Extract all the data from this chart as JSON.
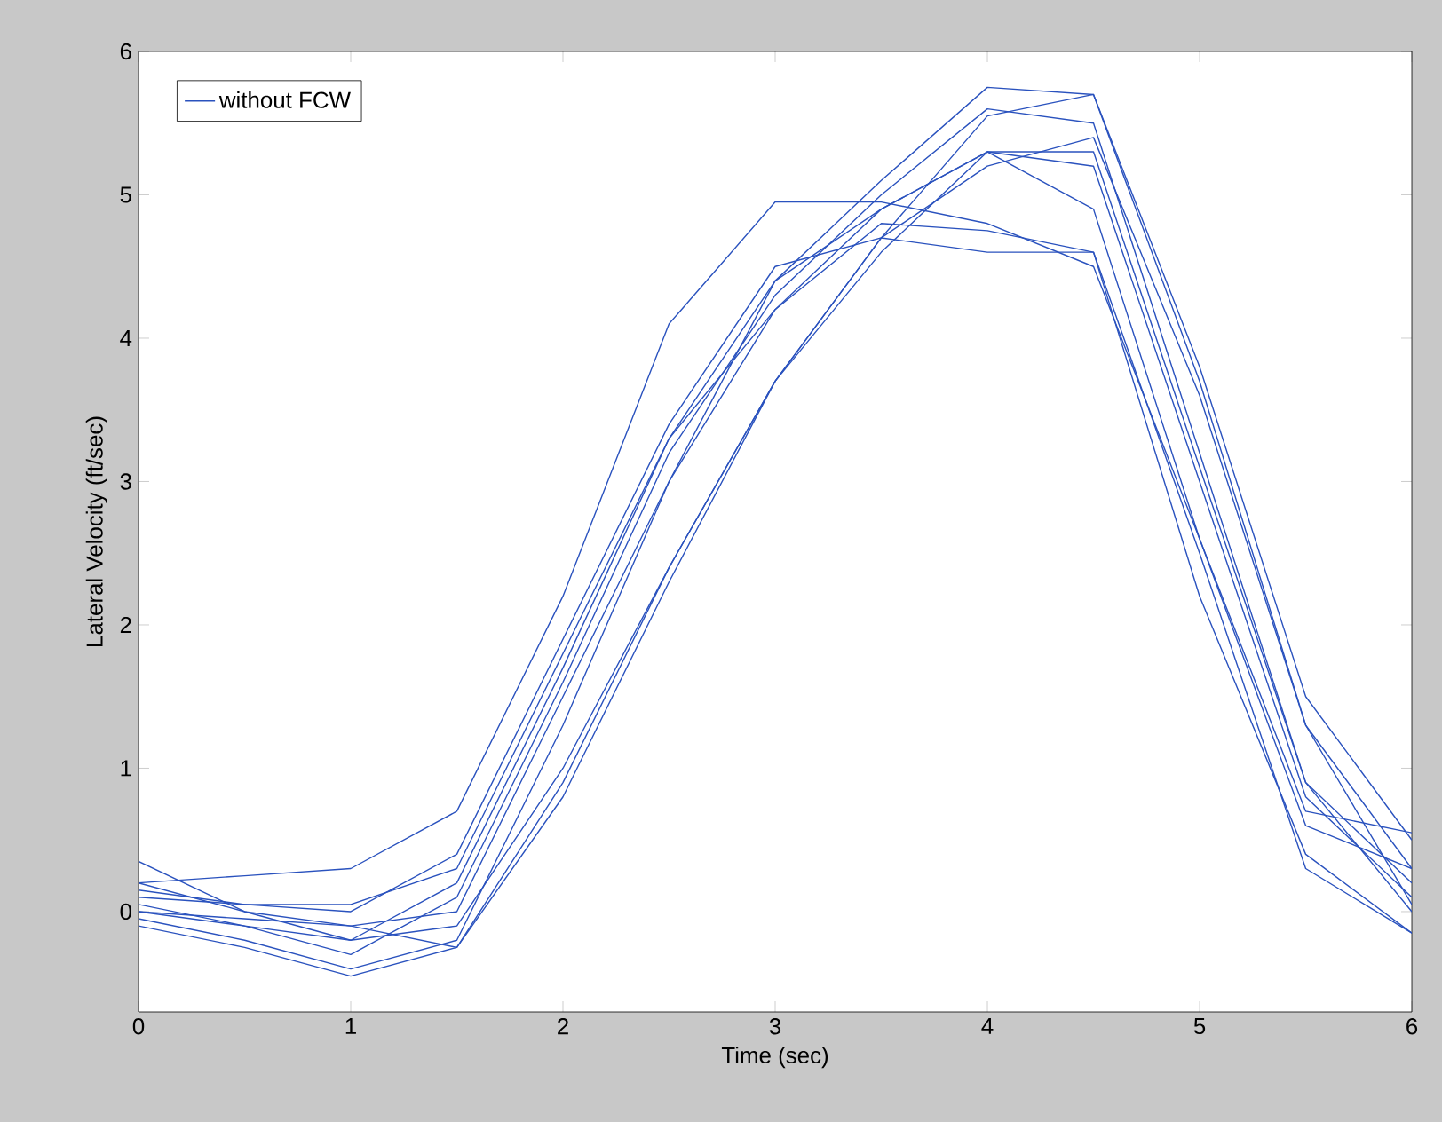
{
  "chart_data": {
    "type": "line",
    "xlabel": "Time (sec)",
    "ylabel": "Lateral Velocity (ft/sec)",
    "x": [
      0,
      0.5,
      1,
      1.5,
      2,
      2.5,
      3,
      3.5,
      4,
      4.5,
      5,
      5.5,
      6
    ],
    "series": [
      {
        "name": "without FCW",
        "color": "#2a52be",
        "values": [
          0.2,
          0.25,
          0.3,
          0.7,
          2.2,
          4.1,
          4.95,
          4.95,
          4.8,
          4.5,
          2.6,
          0.7,
          0.55
        ]
      },
      {
        "color": "#2a52be",
        "values": [
          0.1,
          0.05,
          0.0,
          0.4,
          1.9,
          3.4,
          4.5,
          4.7,
          4.6,
          4.6,
          2.2,
          0.4,
          -0.15
        ]
      },
      {
        "color": "#2a52be",
        "values": [
          0.35,
          0.0,
          -0.2,
          0.2,
          1.7,
          3.3,
          4.4,
          4.9,
          5.3,
          4.9,
          2.6,
          0.6,
          0.3
        ]
      },
      {
        "color": "#2a52be",
        "values": [
          0.0,
          -0.1,
          -0.3,
          0.1,
          1.6,
          3.2,
          4.3,
          5.0,
          5.6,
          5.5,
          3.2,
          0.9,
          0.2
        ]
      },
      {
        "color": "#2a52be",
        "values": [
          -0.05,
          -0.2,
          -0.4,
          -0.2,
          1.3,
          3.0,
          4.2,
          4.8,
          4.75,
          4.6,
          2.5,
          0.3,
          -0.15
        ]
      },
      {
        "color": "#2a52be",
        "values": [
          0.15,
          0.05,
          0.05,
          0.3,
          1.8,
          3.3,
          4.2,
          4.9,
          5.3,
          5.2,
          3.0,
          0.8,
          0.1
        ]
      },
      {
        "color": "#2a52be",
        "values": [
          0.05,
          -0.1,
          -0.2,
          -0.1,
          1.0,
          2.4,
          3.7,
          4.6,
          5.3,
          5.3,
          3.1,
          0.9,
          0.0
        ]
      },
      {
        "color": "#2a52be",
        "values": [
          -0.1,
          -0.25,
          -0.45,
          -0.25,
          0.8,
          2.3,
          3.7,
          4.7,
          5.55,
          5.7,
          3.7,
          1.3,
          0.3
        ]
      },
      {
        "color": "#2a52be",
        "values": [
          0.2,
          0.0,
          -0.1,
          -0.25,
          0.9,
          2.4,
          3.7,
          4.7,
          5.2,
          5.4,
          3.6,
          1.3,
          0.05
        ]
      },
      {
        "color": "#2a52be",
        "values": [
          0.0,
          -0.05,
          -0.1,
          0.0,
          1.5,
          3.0,
          4.4,
          5.1,
          5.75,
          5.7,
          3.8,
          1.5,
          0.5
        ]
      }
    ],
    "xlim": [
      0,
      6
    ],
    "ylim": [
      -0.7,
      6
    ],
    "xticks": [
      0,
      1,
      2,
      3,
      4,
      5,
      6
    ],
    "yticks": [
      0,
      1,
      2,
      3,
      4,
      5,
      6
    ],
    "legend": "top left",
    "grid": false,
    "marker": "none",
    "line_style": "solid"
  }
}
